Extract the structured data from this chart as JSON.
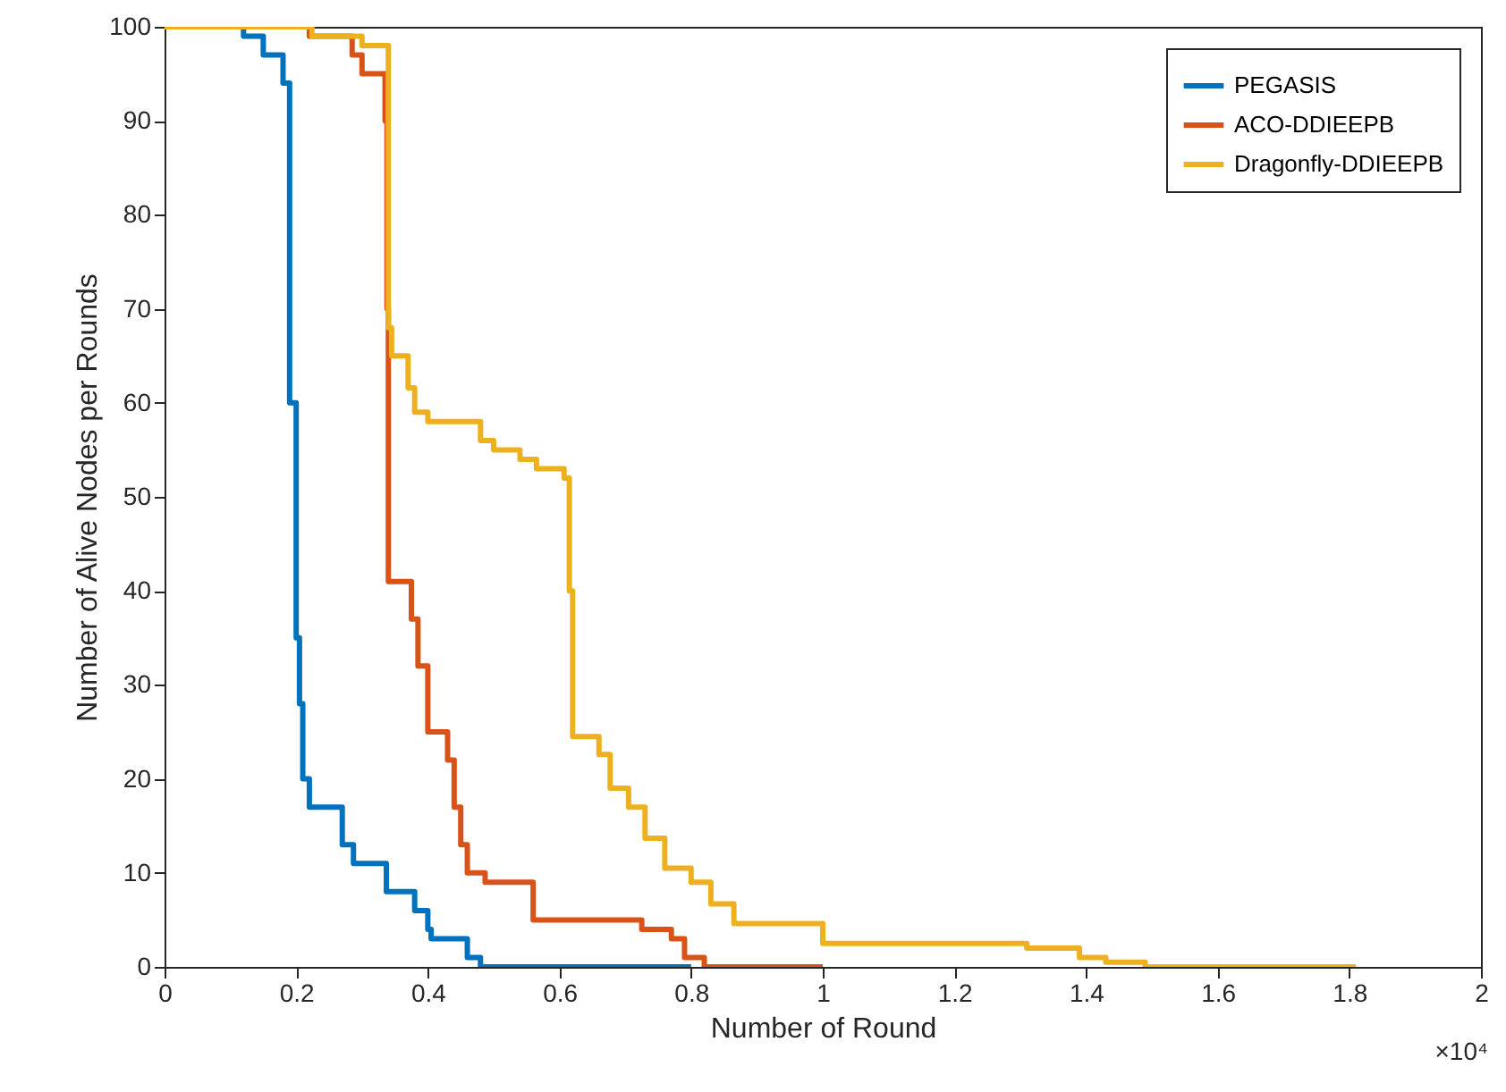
{
  "chart_data": {
    "type": "step",
    "xlabel": "Number of Round",
    "ylabel": "Number of Alive Nodes per Rounds",
    "xlim": [
      0,
      2
    ],
    "xticks": [
      0,
      0.2,
      0.4,
      0.6,
      0.8,
      1,
      1.2,
      1.4,
      1.6,
      1.8,
      2
    ],
    "ylim": [
      0,
      100
    ],
    "yticks": [
      0,
      10,
      20,
      30,
      40,
      50,
      60,
      70,
      80,
      90,
      100
    ],
    "grid": false,
    "legend": "top right",
    "line_style": "solid",
    "marker": "none",
    "annotations": [
      "×10⁴"
    ],
    "series": [
      {
        "name": "PEGASIS",
        "color": "#0072bd",
        "x": [
          0,
          0.12,
          0.15,
          0.18,
          0.19,
          0.2,
          0.205,
          0.21,
          0.22,
          0.257,
          0.27,
          0.287,
          0.326,
          0.337,
          0.37,
          0.38,
          0.4,
          0.405,
          0.45,
          0.46,
          0.48,
          0.8
        ],
        "values": [
          100,
          99,
          97,
          94,
          60,
          35,
          28,
          20,
          17,
          17,
          13,
          11,
          11,
          8,
          8,
          6,
          4,
          3,
          3,
          1,
          0,
          0
        ]
      },
      {
        "name": "ACO-DDIEEPB",
        "color": "#d95319",
        "x": [
          0,
          0.22,
          0.285,
          0.3,
          0.31,
          0.335,
          0.338,
          0.34,
          0.375,
          0.385,
          0.4,
          0.43,
          0.44,
          0.45,
          0.46,
          0.487,
          0.55,
          0.56,
          0.725,
          0.77,
          0.79,
          0.82,
          1.0
        ],
        "values": [
          100,
          99,
          97,
          95,
          95,
          90,
          70,
          41,
          37,
          32,
          25,
          22,
          17,
          13,
          10,
          9,
          9,
          5,
          4,
          3,
          1,
          0,
          0
        ]
      },
      {
        "name": "Dragonfly-DDIEEPB",
        "color": "#edb120",
        "x": [
          0,
          0.224,
          0.3,
          0.33,
          0.34,
          0.345,
          0.37,
          0.38,
          0.4,
          0.46,
          0.48,
          0.5,
          0.54,
          0.565,
          0.607,
          0.615,
          0.62,
          0.66,
          0.677,
          0.705,
          0.73,
          0.76,
          0.8,
          0.83,
          0.865,
          0.99,
          1.0,
          1.31,
          1.39,
          1.43,
          1.49,
          1.81
        ],
        "values": [
          100,
          99,
          98,
          98,
          68,
          65,
          61.6,
          59,
          58,
          58,
          56,
          55,
          54,
          53,
          52,
          40,
          24.5,
          22.6,
          19,
          17,
          13.7,
          10.5,
          9,
          6.7,
          4.6,
          4.6,
          2.5,
          2,
          1,
          0.5,
          0,
          0
        ]
      }
    ]
  }
}
